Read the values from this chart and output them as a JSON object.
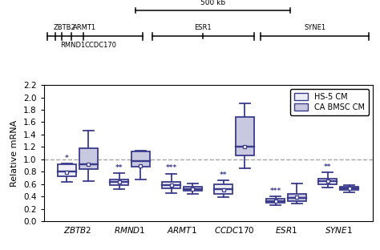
{
  "categories": [
    "ZBTB2",
    "RMND1",
    "ARMT1",
    "CCDC170",
    "ESR1",
    "SYNE1"
  ],
  "ylabel": "Relative mRNA",
  "ylim": [
    0.0,
    2.2
  ],
  "yticks": [
    0.0,
    0.2,
    0.4,
    0.6,
    0.8,
    1.0,
    1.2,
    1.4,
    1.6,
    1.8,
    2.0,
    2.2
  ],
  "hline_y": 1.0,
  "box_color": "#3B3B8C",
  "box_fill_hs5": "#EEEEF8",
  "box_fill_cabmsc": "#C8C8E0",
  "legend_labels": [
    "HS-5 CM",
    "CA BMSC CM"
  ],
  "significance_hs5": [
    "*",
    "**",
    "***",
    "**",
    "***",
    "**"
  ],
  "hs5": {
    "ZBTB2": {
      "q1": 0.73,
      "median": 0.8,
      "q3": 0.925,
      "whisker_low": 0.63,
      "whisker_high": 0.935,
      "mean": 0.795
    },
    "RMND1": {
      "q1": 0.585,
      "median": 0.635,
      "q3": 0.67,
      "whisker_low": 0.525,
      "whisker_high": 0.775,
      "mean": 0.635
    },
    "ARMT1": {
      "q1": 0.535,
      "median": 0.58,
      "q3": 0.64,
      "whisker_low": 0.455,
      "whisker_high": 0.77,
      "mean": 0.58
    },
    "CCDC170": {
      "q1": 0.445,
      "median": 0.515,
      "q3": 0.595,
      "whisker_low": 0.385,
      "whisker_high": 0.66,
      "mean": 0.51
    },
    "ESR1": {
      "q1": 0.3,
      "median": 0.33,
      "q3": 0.365,
      "whisker_low": 0.265,
      "whisker_high": 0.4,
      "mean": 0.325
    },
    "SYNE1": {
      "q1": 0.595,
      "median": 0.65,
      "q3": 0.685,
      "whisker_low": 0.545,
      "whisker_high": 0.79,
      "mean": 0.645
    }
  },
  "cabmsc": {
    "ZBTB2": {
      "q1": 0.845,
      "median": 0.92,
      "q3": 1.175,
      "whisker_low": 0.645,
      "whisker_high": 1.47,
      "mean": 0.925
    },
    "RMND1": {
      "q1": 0.875,
      "median": 0.975,
      "q3": 1.125,
      "whisker_low": 0.68,
      "whisker_high": 1.135,
      "mean": 0.895
    },
    "ARMT1": {
      "q1": 0.49,
      "median": 0.52,
      "q3": 0.56,
      "whisker_low": 0.445,
      "whisker_high": 0.615,
      "mean": 0.52
    },
    "CCDC170": {
      "q1": 1.06,
      "median": 1.2,
      "q3": 1.685,
      "whisker_low": 0.855,
      "whisker_high": 1.905,
      "mean": 1.2
    },
    "ESR1": {
      "q1": 0.33,
      "median": 0.375,
      "q3": 0.435,
      "whisker_low": 0.285,
      "whisker_high": 0.605,
      "mean": 0.395
    },
    "SYNE1": {
      "q1": 0.51,
      "median": 0.535,
      "q3": 0.56,
      "whisker_low": 0.465,
      "whisker_high": 0.585,
      "mean": 0.535
    }
  }
}
